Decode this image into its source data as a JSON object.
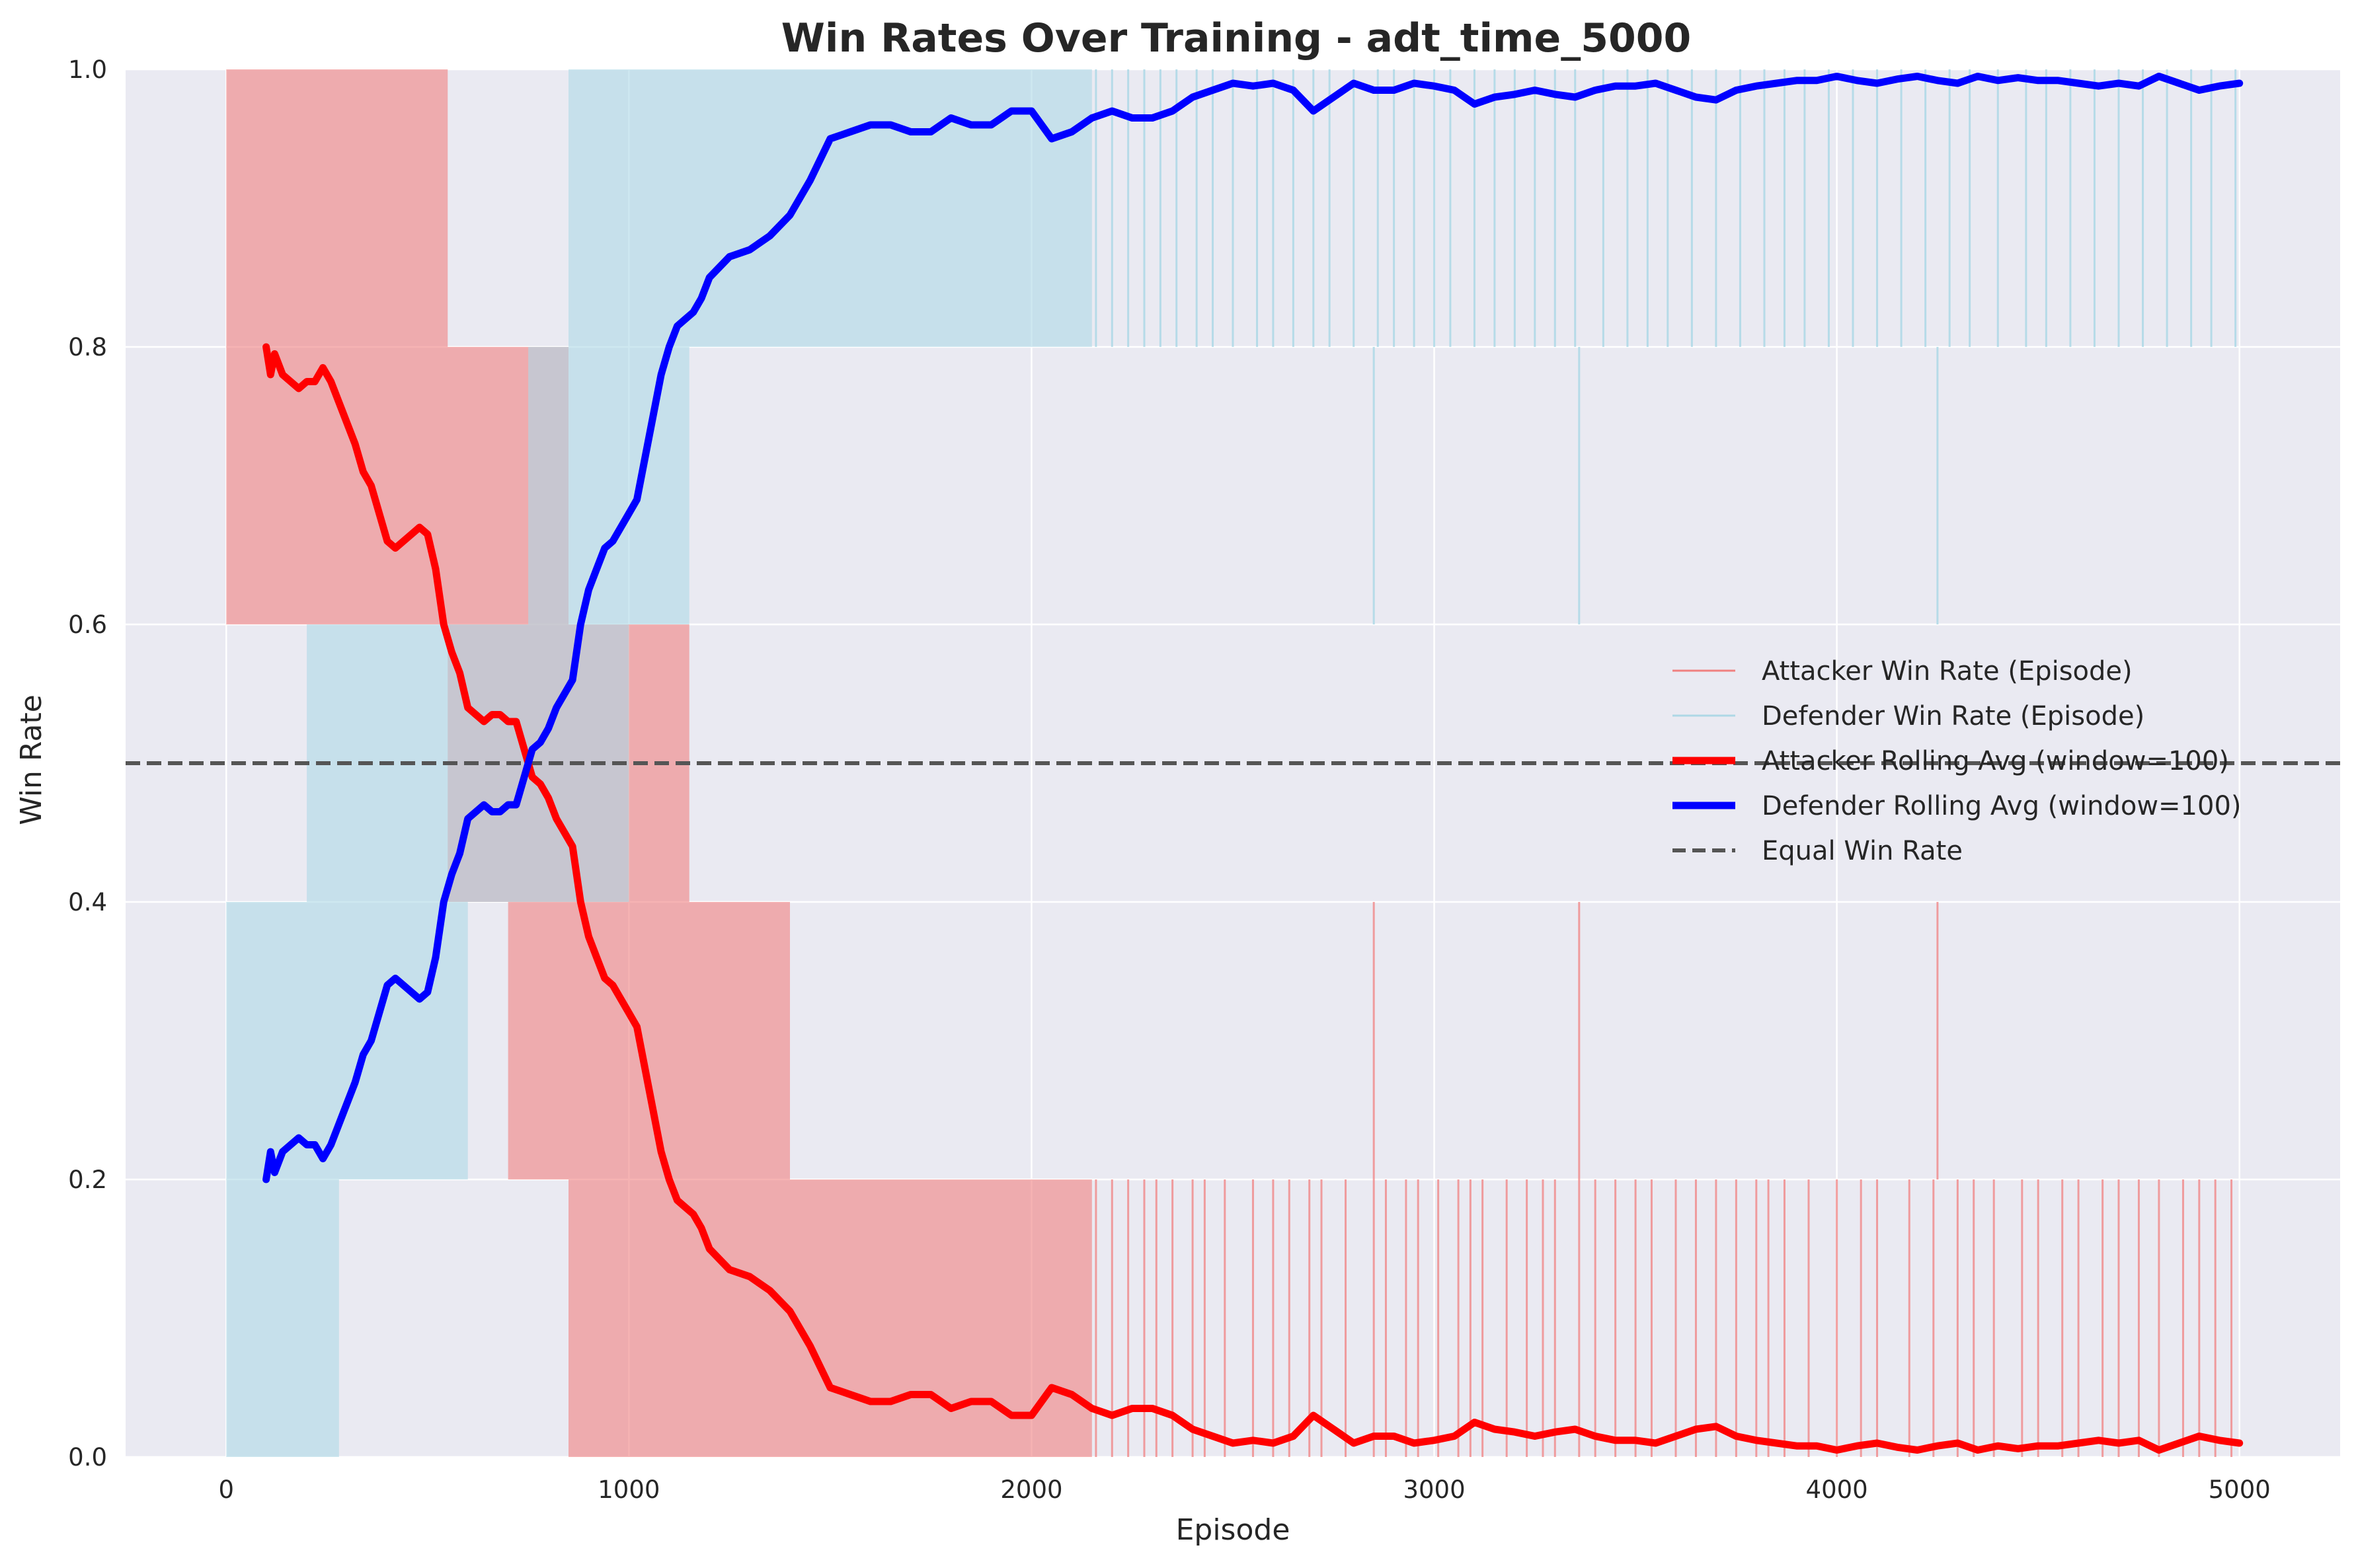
{
  "chart_data": {
    "type": "line",
    "title": "Win Rates Over Training - adt_time_5000",
    "xlabel": "Episode",
    "ylabel": "Win Rate",
    "xlim": [
      -250,
      5250
    ],
    "ylim": [
      0.0,
      1.0
    ],
    "x_ticks": [
      0,
      1000,
      2000,
      3000,
      4000,
      5000
    ],
    "y_ticks": [
      0.0,
      0.2,
      0.4,
      0.6,
      0.8,
      1.0
    ],
    "x_tick_labels": [
      "0",
      "1000",
      "2000",
      "3000",
      "4000",
      "5000"
    ],
    "y_tick_labels": [
      "0.0",
      "0.2",
      "0.4",
      "0.6",
      "0.8",
      "1.0"
    ],
    "grid": true,
    "legend_position": "center-right",
    "colors": {
      "background": "#eaeaf2",
      "grid": "#ffffff",
      "attacker_episode": "#f08080",
      "defender_episode": "#add8e6",
      "attacker_avg": "#ff0000",
      "defender_avg": "#0000ff",
      "equal": "#555555",
      "overlap": "#b8b8c8"
    },
    "episode_bands": {
      "note_free": null,
      "attacker": [
        {
          "from": 0,
          "to": 550,
          "ymin": 0.8,
          "ymax": 1.0
        },
        {
          "from": 0,
          "to": 850,
          "ymin": 0.6,
          "ymax": 0.8
        },
        {
          "from": 550,
          "to": 1150,
          "ymin": 0.4,
          "ymax": 0.6
        },
        {
          "from": 700,
          "to": 1400,
          "ymin": 0.2,
          "ymax": 0.4
        },
        {
          "from": 850,
          "to": 2150,
          "ymin": 0.0,
          "ymax": 0.2
        }
      ],
      "defender": [
        {
          "from": 0,
          "to": 280,
          "ymin": 0.0,
          "ymax": 0.2
        },
        {
          "from": 0,
          "to": 600,
          "ymin": 0.2,
          "ymax": 0.4
        },
        {
          "from": 200,
          "to": 1000,
          "ymin": 0.4,
          "ymax": 0.6
        },
        {
          "from": 750,
          "to": 1150,
          "ymin": 0.6,
          "ymax": 0.8
        },
        {
          "from": 850,
          "to": 2150,
          "ymin": 0.8,
          "ymax": 1.0
        }
      ]
    },
    "episode_spikes": {
      "attacker_low": [
        2160,
        2200,
        2240,
        2280,
        2310,
        2350,
        2400,
        2430,
        2480,
        2550,
        2600,
        2640,
        2690,
        2720,
        2780,
        2850,
        2880,
        2930,
        2960,
        3010,
        3060,
        3090,
        3120,
        3180,
        3230,
        3270,
        3300,
        3360,
        3400,
        3450,
        3500,
        3540,
        3600,
        3650,
        3700,
        3750,
        3800,
        3830,
        3870,
        3930,
        4000,
        4060,
        4100,
        4180,
        4240,
        4300,
        4340,
        4390,
        4460,
        4500,
        4560,
        4600,
        4660,
        4700,
        4750,
        4800,
        4860,
        4900,
        4940,
        4980
      ],
      "defender_high": [
        2160,
        2200,
        2240,
        2280,
        2320,
        2360,
        2410,
        2450,
        2500,
        2560,
        2600,
        2650,
        2700,
        2740,
        2800,
        2860,
        2900,
        2950,
        3000,
        3040,
        3100,
        3150,
        3200,
        3250,
        3300,
        3350,
        3420,
        3480,
        3530,
        3580,
        3640,
        3700,
        3760,
        3820,
        3870,
        3920,
        3980,
        4040,
        4100,
        4160,
        4220,
        4280,
        4330,
        4400,
        4470,
        4520,
        4580,
        4640,
        4700,
        4760,
        4820,
        4880,
        4930,
        4990
      ],
      "attacker_mid": [
        2850,
        3360,
        4250
      ],
      "defender_mid": [
        2850,
        3360,
        4250
      ]
    },
    "series": [
      {
        "name": "Attacker Rolling Avg (window=100)",
        "x": [
          99,
          110,
          120,
          140,
          160,
          180,
          200,
          220,
          240,
          260,
          280,
          300,
          320,
          340,
          360,
          380,
          400,
          420,
          440,
          460,
          480,
          500,
          520,
          540,
          560,
          580,
          600,
          620,
          640,
          660,
          680,
          700,
          720,
          740,
          760,
          780,
          800,
          820,
          840,
          860,
          880,
          900,
          920,
          940,
          960,
          980,
          1000,
          1020,
          1040,
          1060,
          1080,
          1100,
          1120,
          1140,
          1160,
          1180,
          1200,
          1250,
          1300,
          1350,
          1400,
          1450,
          1500,
          1550,
          1600,
          1650,
          1700,
          1750,
          1800,
          1850,
          1900,
          1950,
          2000,
          2050,
          2100,
          2150,
          2200,
          2250,
          2300,
          2350,
          2400,
          2450,
          2500,
          2550,
          2600,
          2650,
          2700,
          2750,
          2800,
          2850,
          2900,
          2950,
          3000,
          3050,
          3100,
          3150,
          3200,
          3250,
          3300,
          3350,
          3400,
          3450,
          3500,
          3550,
          3600,
          3650,
          3700,
          3750,
          3800,
          3850,
          3900,
          3950,
          4000,
          4050,
          4100,
          4150,
          4200,
          4250,
          4300,
          4350,
          4400,
          4450,
          4500,
          4550,
          4600,
          4650,
          4700,
          4750,
          4800,
          4850,
          4900,
          4950,
          5000
        ],
        "values": [
          0.8,
          0.78,
          0.795,
          0.78,
          0.775,
          0.77,
          0.775,
          0.775,
          0.785,
          0.775,
          0.76,
          0.745,
          0.73,
          0.71,
          0.7,
          0.68,
          0.66,
          0.655,
          0.66,
          0.665,
          0.67,
          0.665,
          0.64,
          0.6,
          0.58,
          0.565,
          0.54,
          0.535,
          0.53,
          0.535,
          0.535,
          0.53,
          0.53,
          0.51,
          0.49,
          0.485,
          0.475,
          0.46,
          0.45,
          0.44,
          0.4,
          0.375,
          0.36,
          0.345,
          0.34,
          0.33,
          0.32,
          0.31,
          0.28,
          0.25,
          0.22,
          0.2,
          0.185,
          0.18,
          0.175,
          0.165,
          0.15,
          0.135,
          0.13,
          0.12,
          0.105,
          0.08,
          0.05,
          0.045,
          0.04,
          0.04,
          0.045,
          0.045,
          0.035,
          0.04,
          0.04,
          0.03,
          0.03,
          0.05,
          0.045,
          0.035,
          0.03,
          0.035,
          0.035,
          0.03,
          0.02,
          0.015,
          0.01,
          0.012,
          0.01,
          0.015,
          0.03,
          0.02,
          0.01,
          0.015,
          0.015,
          0.01,
          0.012,
          0.015,
          0.025,
          0.02,
          0.018,
          0.015,
          0.018,
          0.02,
          0.015,
          0.012,
          0.012,
          0.01,
          0.015,
          0.02,
          0.022,
          0.015,
          0.012,
          0.01,
          0.008,
          0.008,
          0.005,
          0.008,
          0.01,
          0.007,
          0.005,
          0.008,
          0.01,
          0.005,
          0.008,
          0.006,
          0.008,
          0.008,
          0.01,
          0.012,
          0.01,
          0.012,
          0.005,
          0.01,
          0.015,
          0.012,
          0.01
        ]
      },
      {
        "name": "Defender Rolling Avg (window=100)",
        "x": [
          99,
          110,
          120,
          140,
          160,
          180,
          200,
          220,
          240,
          260,
          280,
          300,
          320,
          340,
          360,
          380,
          400,
          420,
          440,
          460,
          480,
          500,
          520,
          540,
          560,
          580,
          600,
          620,
          640,
          660,
          680,
          700,
          720,
          740,
          760,
          780,
          800,
          820,
          840,
          860,
          880,
          900,
          920,
          940,
          960,
          980,
          1000,
          1020,
          1040,
          1060,
          1080,
          1100,
          1120,
          1140,
          1160,
          1180,
          1200,
          1250,
          1300,
          1350,
          1400,
          1450,
          1500,
          1550,
          1600,
          1650,
          1700,
          1750,
          1800,
          1850,
          1900,
          1950,
          2000,
          2050,
          2100,
          2150,
          2200,
          2250,
          2300,
          2350,
          2400,
          2450,
          2500,
          2550,
          2600,
          2650,
          2700,
          2750,
          2800,
          2850,
          2900,
          2950,
          3000,
          3050,
          3100,
          3150,
          3200,
          3250,
          3300,
          3350,
          3400,
          3450,
          3500,
          3550,
          3600,
          3650,
          3700,
          3750,
          3800,
          3850,
          3900,
          3950,
          4000,
          4050,
          4100,
          4150,
          4200,
          4250,
          4300,
          4350,
          4400,
          4450,
          4500,
          4550,
          4600,
          4650,
          4700,
          4750,
          4800,
          4850,
          4900,
          4950,
          5000
        ],
        "values": [
          0.2,
          0.22,
          0.205,
          0.22,
          0.225,
          0.23,
          0.225,
          0.225,
          0.215,
          0.225,
          0.24,
          0.255,
          0.27,
          0.29,
          0.3,
          0.32,
          0.34,
          0.345,
          0.34,
          0.335,
          0.33,
          0.335,
          0.36,
          0.4,
          0.42,
          0.435,
          0.46,
          0.465,
          0.47,
          0.465,
          0.465,
          0.47,
          0.47,
          0.49,
          0.51,
          0.515,
          0.525,
          0.54,
          0.55,
          0.56,
          0.6,
          0.625,
          0.64,
          0.655,
          0.66,
          0.67,
          0.68,
          0.69,
          0.72,
          0.75,
          0.78,
          0.8,
          0.815,
          0.82,
          0.825,
          0.835,
          0.85,
          0.865,
          0.87,
          0.88,
          0.895,
          0.92,
          0.95,
          0.955,
          0.96,
          0.96,
          0.955,
          0.955,
          0.965,
          0.96,
          0.96,
          0.97,
          0.97,
          0.95,
          0.955,
          0.965,
          0.97,
          0.965,
          0.965,
          0.97,
          0.98,
          0.985,
          0.99,
          0.988,
          0.99,
          0.985,
          0.97,
          0.98,
          0.99,
          0.985,
          0.985,
          0.99,
          0.988,
          0.985,
          0.975,
          0.98,
          0.982,
          0.985,
          0.982,
          0.98,
          0.985,
          0.988,
          0.988,
          0.99,
          0.985,
          0.98,
          0.978,
          0.985,
          0.988,
          0.99,
          0.992,
          0.992,
          0.995,
          0.992,
          0.99,
          0.993,
          0.995,
          0.992,
          0.99,
          0.995,
          0.992,
          0.994,
          0.992,
          0.992,
          0.99,
          0.988,
          0.99,
          0.988,
          0.995,
          0.99,
          0.985,
          0.988,
          0.99
        ]
      }
    ],
    "reference_line": {
      "name": "Equal Win Rate",
      "y": 0.5
    },
    "legend": [
      {
        "label": "Attacker Win Rate (Episode)",
        "style": "thin",
        "color": "#f08080"
      },
      {
        "label": "Defender Win Rate (Episode)",
        "style": "thin",
        "color": "#add8e6"
      },
      {
        "label": "Attacker Rolling Avg (window=100)",
        "style": "thick",
        "color": "#ff0000"
      },
      {
        "label": "Defender Rolling Avg (window=100)",
        "style": "thick",
        "color": "#0000ff"
      },
      {
        "label": "Equal Win Rate",
        "style": "dashed",
        "color": "#555555"
      }
    ]
  }
}
